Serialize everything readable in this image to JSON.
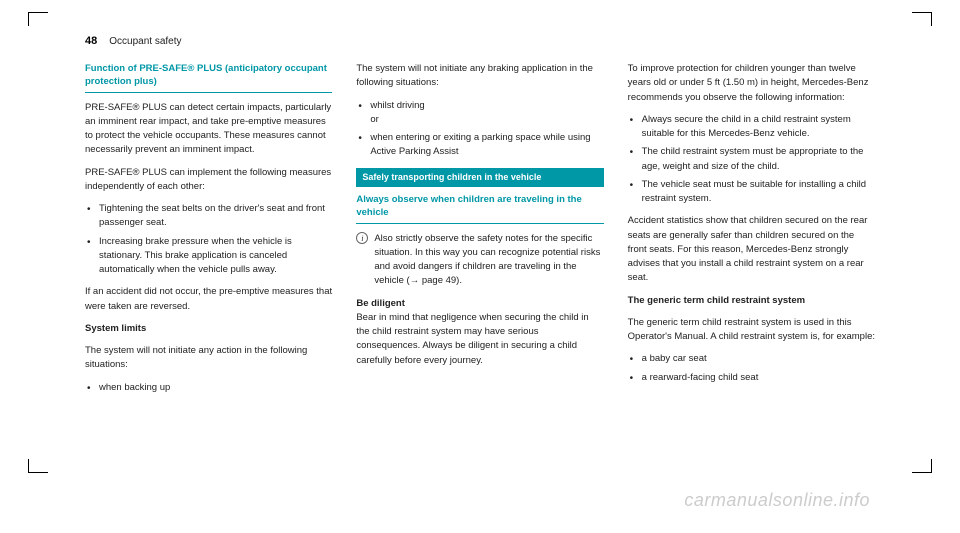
{
  "header": {
    "page_number": "48",
    "section": "Occupant safety"
  },
  "col1": {
    "heading1": "Function of PRE-SAFE® PLUS (anticipatory occupant protection plus)",
    "p1": "PRE-SAFE® PLUS can detect certain impacts, particularly an imminent rear impact, and take pre-emptive measures to protect the vehicle occupants. These measures cannot necessarily prevent an imminent impact.",
    "p2": "PRE-SAFE® PLUS can implement the following measures independently of each other:",
    "li1": "Tightening the seat belts on the driver's seat and front passenger seat.",
    "li2": "Increasing brake pressure when the vehicle is stationary. This brake application is canceled automatically when the vehicle pulls away.",
    "p3": "If an accident did not occur, the pre-emptive measures that were taken are reversed.",
    "h_syslimits": "System limits",
    "p4": "The system will not initiate any action in the following situations:",
    "li3": "when backing up"
  },
  "col2": {
    "p1": "The system will not initiate any braking application in the following situations:",
    "li1_a": "whilst driving",
    "li1_b": "or",
    "li2": "when entering or exiting a parking space while using Active Parking Assist",
    "bar": "Safely transporting children in the vehicle",
    "heading2": "Always observe when children are traveling in the vehicle",
    "info": "Also strictly observe the safety notes for the specific situation. In this way you can recognize potential risks and avoid dangers if children are traveling in the vehicle (→ page 49).",
    "h_diligent": "Be diligent",
    "p_diligent": "Bear in mind that negligence when securing the child in the child restraint system may have serious consequences. Always be diligent in securing a child carefully before every journey."
  },
  "col3": {
    "p1": "To improve protection for children younger than twelve years old or under 5 ft (1.50 m) in height, Mercedes-Benz recommends you observe the following information:",
    "li1": "Always secure the child in a child restraint system suitable for this Mercedes-Benz vehicle.",
    "li2": "The child restraint system must be appropriate to the age, weight and size of the child.",
    "li3": "The vehicle seat must be suitable for installing a child restraint system.",
    "p2": "Accident statistics show that children secured on the rear seats are generally safer than children secured on the front seats. For this reason, Mercedes-Benz strongly advises that you install a child restraint system on a rear seat.",
    "h_generic": "The generic term child restraint system",
    "p3": "The generic term child restraint system is used in this Operator's Manual. A child restraint system is, for example:",
    "li4": "a baby car seat",
    "li5": "a rearward-facing child seat"
  },
  "watermark": "carmanualsonline.info",
  "colors": {
    "teal": "#0097a7",
    "text": "#222222",
    "watermark": "#cccccc"
  }
}
